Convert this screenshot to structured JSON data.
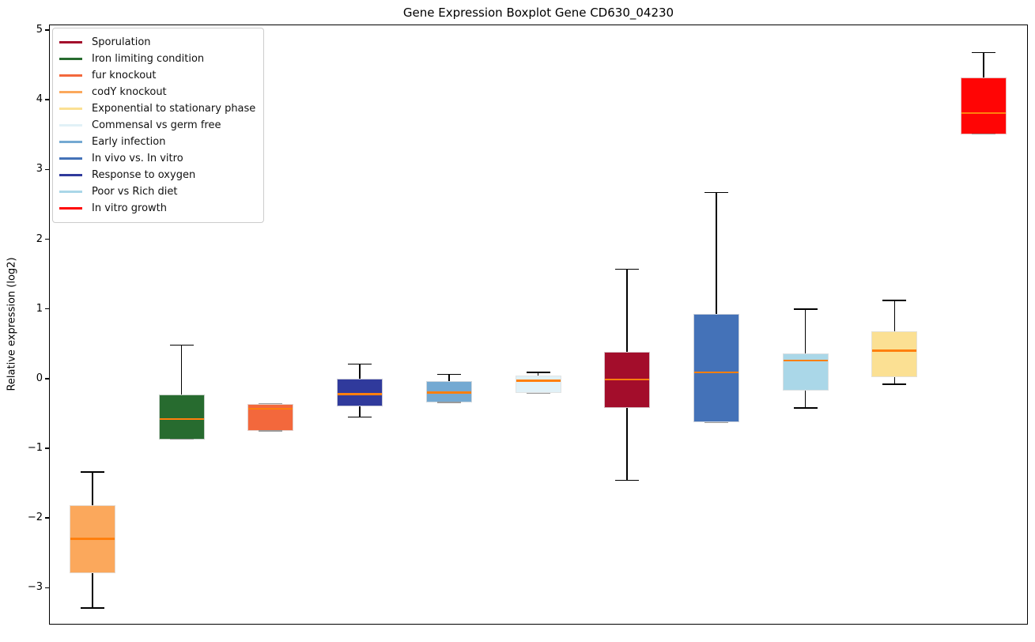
{
  "title": "Gene Expression Boxplot Gene CD630_04230",
  "y_axis": {
    "label": "Relative expression (log2)",
    "ticks": [
      5,
      4,
      3,
      2,
      1,
      0,
      -1,
      -2,
      -3
    ]
  },
  "legend": {
    "position": "upper left",
    "entries": [
      {
        "label": "Sporulation",
        "color": "#a30d2b"
      },
      {
        "label": "Iron limiting condition",
        "color": "#276b2f"
      },
      {
        "label": "fur knockout",
        "color": "#f3683c"
      },
      {
        "label": "codY knockout",
        "color": "#fba85c"
      },
      {
        "label": "Exponential to stationary phase",
        "color": "#fbe093"
      },
      {
        "label": "Commensal vs germ free",
        "color": "#e1f1f7"
      },
      {
        "label": "Early infection",
        "color": "#74a9d2"
      },
      {
        "label": "In vivo vs. In vitro",
        "color": "#4472b8"
      },
      {
        "label": "Response to oxygen",
        "color": "#303a9c"
      },
      {
        "label": "Poor vs Rich diet",
        "color": "#aad7e8"
      },
      {
        "label": "In vitro growth",
        "color": "#ff0505"
      }
    ]
  },
  "chart_data": {
    "type": "boxplot",
    "title": "Gene Expression Boxplot Gene CD630_04230",
    "xlabel": "",
    "ylabel": "Relative expression (log2)",
    "ylim": [
      -3.53,
      5.08
    ],
    "yticks": [
      5,
      4,
      3,
      2,
      1,
      0,
      -1,
      -2,
      -3
    ],
    "grid": false,
    "legend_position": "upper left",
    "median_color": "#ff7f0e",
    "whisker_color": "#000000",
    "categories": [
      "codY knockout",
      "Iron limiting condition",
      "fur knockout",
      "Response to oxygen",
      "Early infection",
      "Commensal vs germ free",
      "Sporulation",
      "In vivo vs. In vitro",
      "Poor vs Rich diet",
      "Exponential to stationary phase",
      "In vitro growth"
    ],
    "boxes": [
      {
        "label": "codY knockout",
        "color": "#fba85c",
        "whisker_low": -3.28,
        "q1": -2.78,
        "median": -2.29,
        "q3": -1.81,
        "whisker_high": -1.33
      },
      {
        "label": "Iron limiting condition",
        "color": "#276b2f",
        "whisker_low": -0.86,
        "q1": -0.86,
        "median": -0.57,
        "q3": -0.22,
        "whisker_high": 0.49
      },
      {
        "label": "fur knockout",
        "color": "#f3683c",
        "whisker_low": -0.74,
        "q1": -0.74,
        "median": -0.42,
        "q3": -0.35,
        "whisker_high": -0.35
      },
      {
        "label": "Response to oxygen",
        "color": "#303a9c",
        "whisker_low": -0.54,
        "q1": -0.39,
        "median": -0.21,
        "q3": 0.01,
        "whisker_high": 0.22
      },
      {
        "label": "Early infection",
        "color": "#74a9d2",
        "whisker_low": -0.33,
        "q1": -0.33,
        "median": -0.19,
        "q3": -0.02,
        "whisker_high": 0.07
      },
      {
        "label": "Commensal vs germ free",
        "color": "#e1f1f7",
        "whisker_low": -0.2,
        "q1": -0.2,
        "median": -0.02,
        "q3": 0.06,
        "whisker_high": 0.1
      },
      {
        "label": "Sporulation",
        "color": "#a30d2b",
        "whisker_low": -1.45,
        "q1": -0.41,
        "median": 0.0,
        "q3": 0.4,
        "whisker_high": 1.58
      },
      {
        "label": "In vivo vs. In vitro",
        "color": "#4472b8",
        "whisker_low": -0.62,
        "q1": -0.62,
        "median": 0.1,
        "q3": 0.94,
        "whisker_high": 2.68
      },
      {
        "label": "Poor vs Rich diet",
        "color": "#aad7e8",
        "whisker_low": -0.41,
        "q1": -0.16,
        "median": 0.27,
        "q3": 0.37,
        "whisker_high": 1.01
      },
      {
        "label": "Exponential to stationary phase",
        "color": "#fbe093",
        "whisker_low": -0.07,
        "q1": 0.03,
        "median": 0.41,
        "q3": 0.69,
        "whisker_high": 1.13
      },
      {
        "label": "In vitro growth",
        "color": "#ff0505",
        "whisker_low": 3.52,
        "q1": 3.52,
        "median": 3.82,
        "q3": 4.33,
        "whisker_high": 4.69
      }
    ]
  }
}
